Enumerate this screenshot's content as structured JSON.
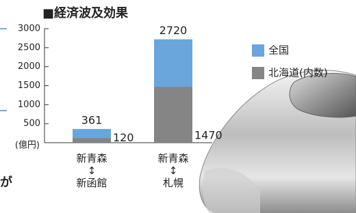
{
  "chart_data": {
    "type": "bar",
    "title": "■経済波及効果",
    "y_unit": "(億円)",
    "categories": [
      "新青森\n↕\n新函館",
      "新青森\n↕\n札幌"
    ],
    "series": [
      {
        "name": "全国",
        "color": "#6aa6db",
        "values": [
          361,
          2720
        ]
      },
      {
        "name": "北海道(内数)",
        "color": "#858585",
        "values": [
          120,
          1470
        ]
      }
    ],
    "ylim": [
      0,
      3000
    ],
    "yticks": [
      500,
      1000,
      1500,
      2000,
      2500,
      3000
    ],
    "overlap": true,
    "legend": "right"
  },
  "page_text": "が"
}
